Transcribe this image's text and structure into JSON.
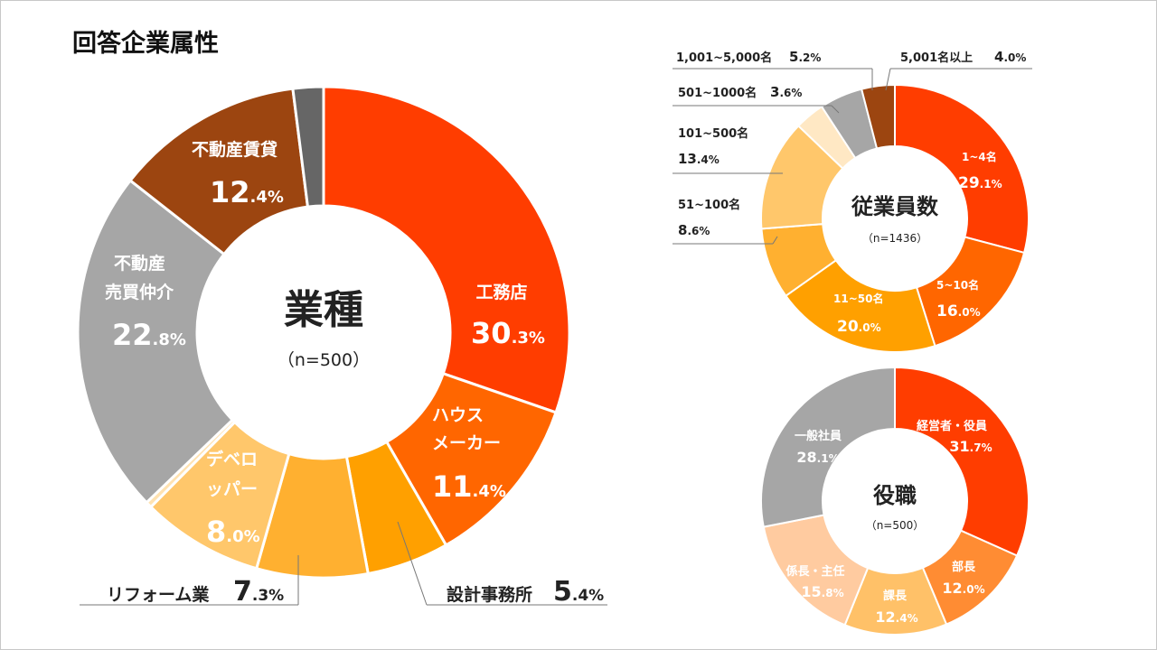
{
  "page": {
    "title": "回答企業属性"
  },
  "chart_data": [
    {
      "type": "pie",
      "id": "industry",
      "center_title": "業種",
      "center_sub": "（n=500）",
      "slices": [
        {
          "label": "工務店",
          "value": 30.3,
          "color": "#FF3D00"
        },
        {
          "label": "ハウスメーカー",
          "value": 11.4,
          "color": "#FF6600"
        },
        {
          "label": "設計事務所",
          "value": 5.4,
          "color": "#FFA000"
        },
        {
          "label": "リフォーム業",
          "value": 7.3,
          "color": "#FFB030"
        },
        {
          "label": "デベロッパー",
          "value": 8.0,
          "color": "#FFC76B"
        },
        {
          "label": "",
          "value": 0.4,
          "color": "#FFE2B0"
        },
        {
          "label": "不動産売買仲介",
          "value": 22.8,
          "color": "#A6A6A6"
        },
        {
          "label": "不動産賃貸",
          "value": 12.4,
          "color": "#9C4510"
        },
        {
          "label": "",
          "value": 2.0,
          "color": "#666666"
        }
      ],
      "label_text": {
        "koumuten": {
          "name": "工務店",
          "num": "30",
          "dec": ".3%"
        },
        "house": {
          "name1": "ハウス",
          "name2": "メーカー",
          "num": "11",
          "dec": ".4%"
        },
        "sekkei": {
          "name": "設計事務所",
          "num": "5",
          "dec": ".4%"
        },
        "reform": {
          "name": "リフォーム業",
          "num": "7",
          "dec": ".3%"
        },
        "dev": {
          "name1": "デベロ",
          "name2": "ッパー",
          "num": "8",
          "dec": ".0%"
        },
        "baibai": {
          "name1": "不動産",
          "name2": "売買仲介",
          "num": "22",
          "dec": ".8%"
        },
        "chintai": {
          "name": "不動産賃貸",
          "num": "12",
          "dec": ".4%"
        }
      }
    },
    {
      "type": "pie",
      "id": "employees",
      "center_title": "従業員数",
      "center_sub": "（n=1436）",
      "slices": [
        {
          "label": "1~4名",
          "value": 29.1,
          "color": "#FF3D00"
        },
        {
          "label": "5~10名",
          "value": 16.0,
          "color": "#FF6600"
        },
        {
          "label": "11~50名",
          "value": 20.0,
          "color": "#FFA000"
        },
        {
          "label": "51~100名",
          "value": 8.6,
          "color": "#FFB030"
        },
        {
          "label": "101~500名",
          "value": 13.4,
          "color": "#FFC76B"
        },
        {
          "label": "501~1000名",
          "value": 3.6,
          "color": "#FFE8C4"
        },
        {
          "label": "1,001~5,000名",
          "value": 5.2,
          "color": "#A6A6A6"
        },
        {
          "label": "5,001名以上",
          "value": 4.0,
          "color": "#9C4510"
        }
      ],
      "label_text": {
        "e1": {
          "name": "1~4名",
          "num": "29",
          "dec": ".1%"
        },
        "e2": {
          "name": "5~10名",
          "num": "16",
          "dec": ".0%"
        },
        "e3": {
          "name": "11~50名",
          "num": "20",
          "dec": ".0%"
        },
        "e4": {
          "name": "51~100名",
          "num": "8",
          "dec": ".6%"
        },
        "e5": {
          "name": "101~500名",
          "num": "13",
          "dec": ".4%"
        },
        "e6": {
          "name": "501~1000名",
          "num": "3",
          "dec": ".6%"
        },
        "e7": {
          "name": "1,001~5,000名",
          "num": "5",
          "dec": ".2%"
        },
        "e8": {
          "name": "5,001名以上",
          "num": "4",
          "dec": ".0%"
        }
      }
    },
    {
      "type": "pie",
      "id": "position",
      "center_title": "役職",
      "center_sub": "（n=500）",
      "slices": [
        {
          "label": "経営者・役員",
          "value": 31.7,
          "color": "#FF3D00"
        },
        {
          "label": "部長",
          "value": 12.0,
          "color": "#FF8C33"
        },
        {
          "label": "課長",
          "value": 12.4,
          "color": "#FFC168"
        },
        {
          "label": "係長・主任",
          "value": 15.8,
          "color": "#FFCBA0"
        },
        {
          "label": "一般社員",
          "value": 28.1,
          "color": "#A6A6A6"
        }
      ],
      "label_text": {
        "p1": {
          "name": "経営者・役員",
          "num": "31",
          "dec": ".7%"
        },
        "p2": {
          "name": "部長",
          "num": "12",
          "dec": ".0%"
        },
        "p3": {
          "name": "課長",
          "num": "12",
          "dec": ".4%"
        },
        "p4": {
          "name": "係長・主任",
          "num": "15",
          "dec": ".8%"
        },
        "p5": {
          "name": "一般社員",
          "num": "28",
          "dec": ".1%"
        }
      }
    }
  ]
}
